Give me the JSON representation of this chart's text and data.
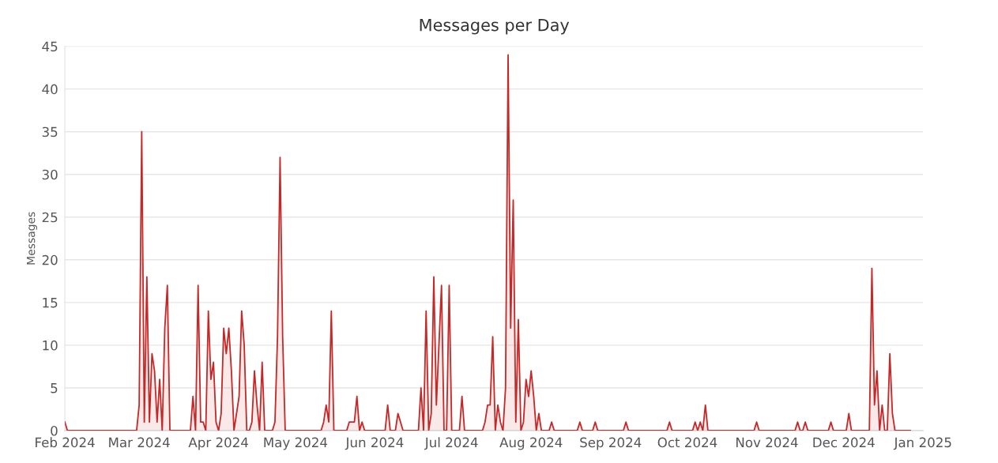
{
  "chart_data": {
    "type": "area",
    "title": "Messages per Day",
    "ylabel": "Messages",
    "x": [
      "2024-02-01",
      "2024-02-02",
      "2024-02-29",
      "2024-03-01",
      "2024-03-02",
      "2024-03-03",
      "2024-03-04",
      "2024-03-05",
      "2024-03-06",
      "2024-03-07",
      "2024-03-08",
      "2024-03-09",
      "2024-03-10",
      "2024-03-11",
      "2024-03-12",
      "2024-03-13",
      "2024-03-21",
      "2024-03-22",
      "2024-03-23",
      "2024-03-24",
      "2024-03-25",
      "2024-03-26",
      "2024-03-27",
      "2024-03-28",
      "2024-03-29",
      "2024-03-30",
      "2024-03-31",
      "2024-04-01",
      "2024-04-02",
      "2024-04-03",
      "2024-04-04",
      "2024-04-05",
      "2024-04-06",
      "2024-04-07",
      "2024-04-08",
      "2024-04-09",
      "2024-04-10",
      "2024-04-11",
      "2024-04-12",
      "2024-04-13",
      "2024-04-14",
      "2024-04-15",
      "2024-04-16",
      "2024-04-17",
      "2024-04-18",
      "2024-04-19",
      "2024-04-22",
      "2024-04-23",
      "2024-04-24",
      "2024-04-25",
      "2024-04-26",
      "2024-04-27",
      "2024-05-11",
      "2024-05-12",
      "2024-05-13",
      "2024-05-14",
      "2024-05-15",
      "2024-05-16",
      "2024-05-21",
      "2024-05-22",
      "2024-05-24",
      "2024-05-25",
      "2024-05-26",
      "2024-05-27",
      "2024-05-28",
      "2024-06-05",
      "2024-06-06",
      "2024-06-07",
      "2024-06-09",
      "2024-06-10",
      "2024-06-12",
      "2024-06-18",
      "2024-06-19",
      "2024-06-20",
      "2024-06-21",
      "2024-06-22",
      "2024-06-23",
      "2024-06-24",
      "2024-06-25",
      "2024-06-26",
      "2024-06-27",
      "2024-06-28",
      "2024-06-29",
      "2024-06-30",
      "2024-07-01",
      "2024-07-04",
      "2024-07-05",
      "2024-07-06",
      "2024-07-13",
      "2024-07-14",
      "2024-07-15",
      "2024-07-16",
      "2024-07-17",
      "2024-07-18",
      "2024-07-19",
      "2024-07-20",
      "2024-07-21",
      "2024-07-22",
      "2024-07-23",
      "2024-07-24",
      "2024-07-25",
      "2024-07-26",
      "2024-07-27",
      "2024-07-28",
      "2024-07-29",
      "2024-07-30",
      "2024-07-31",
      "2024-08-01",
      "2024-08-02",
      "2024-08-03",
      "2024-08-04",
      "2024-08-05",
      "2024-08-08",
      "2024-08-09",
      "2024-08-10",
      "2024-08-19",
      "2024-08-20",
      "2024-08-21",
      "2024-08-25",
      "2024-08-26",
      "2024-08-27",
      "2024-09-06",
      "2024-09-07",
      "2024-09-08",
      "2024-09-23",
      "2024-09-24",
      "2024-09-25",
      "2024-10-03",
      "2024-10-04",
      "2024-10-05",
      "2024-10-06",
      "2024-10-07",
      "2024-10-08",
      "2024-10-09",
      "2024-10-27",
      "2024-10-28",
      "2024-10-29",
      "2024-11-12",
      "2024-11-13",
      "2024-11-14",
      "2024-11-15",
      "2024-11-16",
      "2024-11-17",
      "2024-11-25",
      "2024-11-26",
      "2024-11-27",
      "2024-12-02",
      "2024-12-03",
      "2024-12-04",
      "2024-12-11",
      "2024-12-12",
      "2024-12-13",
      "2024-12-14",
      "2024-12-15",
      "2024-12-16",
      "2024-12-17",
      "2024-12-18",
      "2024-12-19",
      "2024-12-20",
      "2024-12-21",
      "2024-12-27"
    ],
    "series": [
      {
        "color": "#c62828",
        "values": [
          1,
          0,
          0,
          3,
          35,
          1,
          18,
          1,
          9,
          7,
          1,
          6,
          0,
          12,
          17,
          0,
          0,
          4,
          0,
          17,
          1,
          1,
          0,
          14,
          6,
          8,
          1,
          0,
          2,
          12,
          9,
          12,
          7,
          0,
          2,
          4,
          14,
          10,
          0,
          0,
          1,
          7,
          3,
          0,
          8,
          0,
          0,
          1,
          11,
          32,
          11,
          0,
          0,
          1,
          3,
          1,
          14,
          0,
          0,
          1,
          1,
          4,
          0,
          1,
          0,
          0,
          3,
          0,
          0,
          2,
          0,
          0,
          5,
          0,
          14,
          0,
          2,
          18,
          3,
          10,
          17,
          0,
          0,
          17,
          0,
          0,
          4,
          0,
          0,
          1,
          3,
          3,
          11,
          0,
          3,
          1,
          0,
          5,
          44,
          12,
          27,
          1,
          13,
          0,
          1,
          6,
          4,
          7,
          4,
          0,
          2,
          0,
          0,
          1,
          0,
          0,
          1,
          0,
          0,
          1,
          0,
          0,
          1,
          0,
          0,
          1,
          0,
          0,
          1,
          0,
          1,
          0,
          3,
          0,
          0,
          1,
          0,
          0,
          1,
          0,
          0,
          1,
          0,
          0,
          1,
          0,
          0,
          2,
          0,
          0,
          19,
          3,
          7,
          0,
          3,
          0,
          0,
          9,
          2,
          0,
          0
        ]
      }
    ],
    "xlim": [
      "2024-02-01",
      "2025-01-01"
    ],
    "xticks": [
      {
        "value": "2024-02-01",
        "label": "Feb 2024"
      },
      {
        "value": "2024-03-01",
        "label": "Mar 2024"
      },
      {
        "value": "2024-04-01",
        "label": "Apr 2024"
      },
      {
        "value": "2024-05-01",
        "label": "May 2024"
      },
      {
        "value": "2024-06-01",
        "label": "Jun 2024"
      },
      {
        "value": "2024-07-01",
        "label": "Jul 2024"
      },
      {
        "value": "2024-08-01",
        "label": "Aug 2024"
      },
      {
        "value": "2024-09-01",
        "label": "Sep 2024"
      },
      {
        "value": "2024-10-01",
        "label": "Oct 2024"
      },
      {
        "value": "2024-11-01",
        "label": "Nov 2024"
      },
      {
        "value": "2024-12-01",
        "label": "Dec 2024"
      },
      {
        "value": "2025-01-01",
        "label": "Jan 2025"
      }
    ],
    "ylim": [
      0,
      45
    ],
    "yticks": [
      0,
      5,
      10,
      15,
      20,
      25,
      30,
      35,
      40,
      45
    ],
    "grid": "y",
    "marker": "none",
    "line_style": "solid"
  }
}
